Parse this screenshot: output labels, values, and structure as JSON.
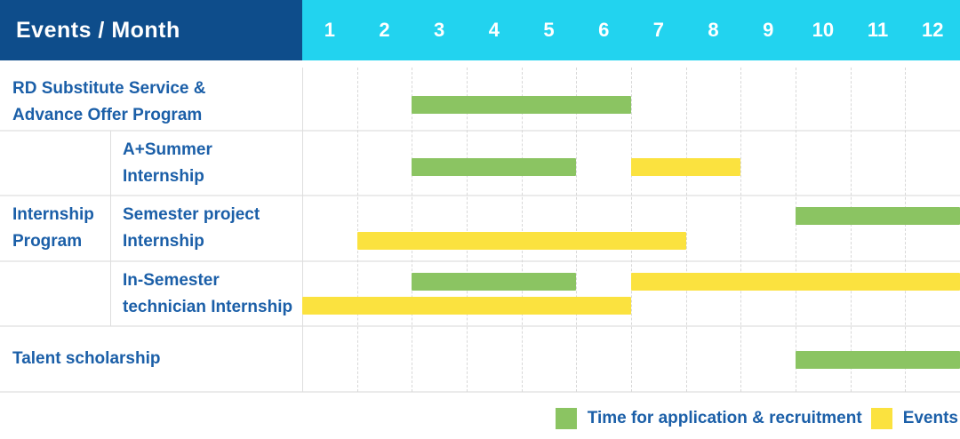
{
  "header": {
    "title": "Events / Month",
    "months": [
      "1",
      "2",
      "3",
      "4",
      "5",
      "6",
      "7",
      "8",
      "9",
      "10",
      "11",
      "12"
    ]
  },
  "colors": {
    "navy": "#0e4d8b",
    "cyan": "#22d3ef",
    "green": "#8bc462",
    "yellow": "#fbe23f",
    "label_blue": "#1b5fa8",
    "grid": "#ebebeb"
  },
  "group_label": "Internship\nProgram",
  "legend": [
    {
      "label": "Time for application & recruitment",
      "color": "#8bc462"
    },
    {
      "label": "Events",
      "color": "#fbe23f"
    }
  ],
  "chart_data": {
    "type": "gantt",
    "x_axis": {
      "unit": "month",
      "ticks": [
        "1",
        "2",
        "3",
        "4",
        "5",
        "6",
        "7",
        "8",
        "9",
        "10",
        "11",
        "12"
      ],
      "range": [
        1,
        12
      ]
    },
    "legend_position": "bottom-right",
    "series_legend": [
      {
        "name": "Time for application & recruitment",
        "color": "#8bc462"
      },
      {
        "name": "Events",
        "color": "#fbe23f"
      }
    ],
    "rows": [
      {
        "label": "RD Substitute Service &\nAdvance Offer Program",
        "group": null,
        "bars": [
          {
            "series": "Time for application & recruitment",
            "color_key": "green",
            "start_month": 3,
            "end_month": 6,
            "lane": "single"
          }
        ]
      },
      {
        "label": "A+Summer\nInternship",
        "group": "Internship Program",
        "bars": [
          {
            "series": "Time for application & recruitment",
            "color_key": "green",
            "start_month": 3,
            "end_month": 5,
            "lane": "single"
          },
          {
            "series": "Events",
            "color_key": "yellow",
            "start_month": 7,
            "end_month": 8,
            "lane": "single"
          }
        ]
      },
      {
        "label": "Semester project\nInternship",
        "group": "Internship Program",
        "bars": [
          {
            "series": "Time for application & recruitment",
            "color_key": "green",
            "start_month": 10,
            "end_month": 12,
            "lane": "upper"
          },
          {
            "series": "Events",
            "color_key": "yellow",
            "start_month": 2,
            "end_month": 7,
            "lane": "lower"
          }
        ]
      },
      {
        "label": "In-Semester\ntechnician Internship",
        "group": "Internship Program",
        "bars": [
          {
            "series": "Time for application & recruitment",
            "color_key": "green",
            "start_month": 3,
            "end_month": 5,
            "lane": "upper"
          },
          {
            "series": "Events",
            "color_key": "yellow",
            "start_month": 7,
            "end_month": 12,
            "lane": "upper"
          },
          {
            "series": "Events",
            "color_key": "yellow",
            "start_month": 1,
            "end_month": 6,
            "lane": "lower"
          }
        ]
      },
      {
        "label": "Talent scholarship",
        "group": null,
        "bars": [
          {
            "series": "Time for application & recruitment",
            "color_key": "green",
            "start_month": 10,
            "end_month": 12,
            "lane": "single"
          }
        ]
      }
    ]
  }
}
